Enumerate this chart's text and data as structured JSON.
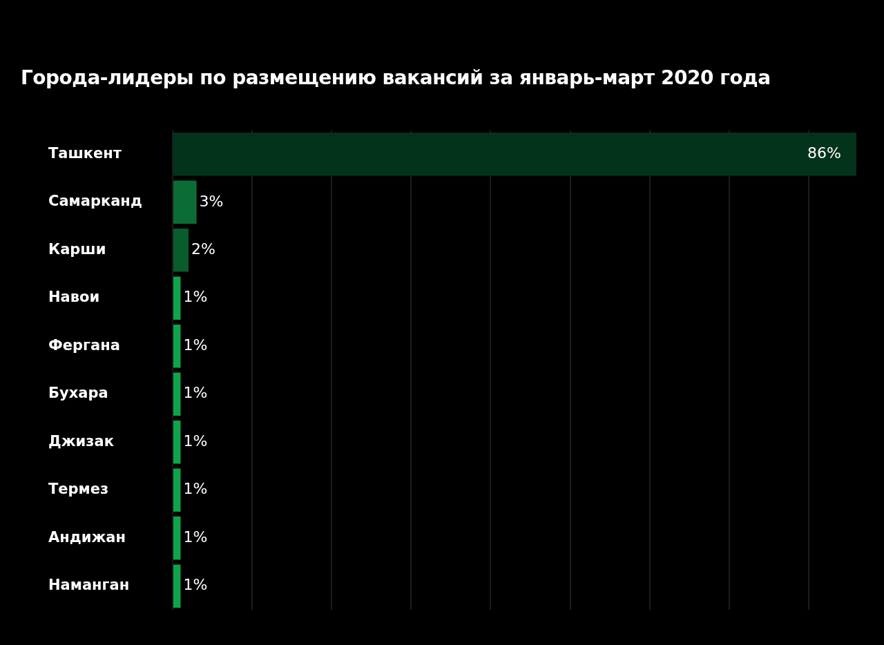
{
  "chart_data": {
    "type": "bar",
    "orientation": "horizontal",
    "title": "Города-лидеры по размещению вакансий за январь-март 2020 года",
    "categories": [
      "Ташкент",
      "Самарканд",
      "Карши",
      "Навои",
      "Фергана",
      "Бухара",
      "Джизак",
      "Термез",
      "Андижан",
      "Наманган"
    ],
    "values": [
      86,
      3,
      2,
      1,
      1,
      1,
      1,
      1,
      1,
      1
    ],
    "colors": [
      "#04331c",
      "#0b6d35",
      "#095c2c",
      "#0fa44b",
      "#0fa44b",
      "#0fa44b",
      "#0fa44b",
      "#0fa44b",
      "#0fa44b",
      "#0fa44b"
    ],
    "value_labels": [
      "86%",
      "3%",
      "2%",
      "1%",
      "1%",
      "1%",
      "1%",
      "1%",
      "1%",
      "1%"
    ],
    "xlim": [
      0,
      86
    ],
    "xticks": [
      {
        "value": 0,
        "label": null
      },
      {
        "value": 10,
        "label": null
      },
      {
        "value": 20,
        "label": null
      },
      {
        "value": 30,
        "label": null
      },
      {
        "value": 40,
        "label": null
      },
      {
        "value": 50,
        "label": null
      },
      {
        "value": 60,
        "label": null
      },
      {
        "value": 70,
        "label": null
      },
      {
        "value": 80,
        "label": null
      }
    ],
    "tick_labels": "y",
    "grid": "x",
    "legend": false
  }
}
